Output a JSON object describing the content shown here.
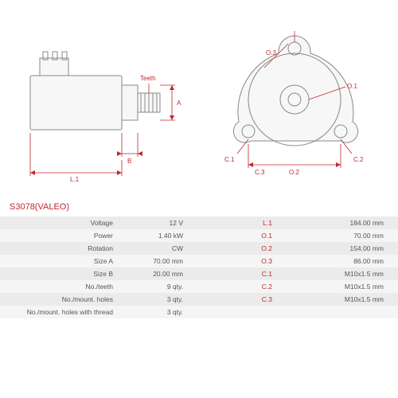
{
  "title": "S3078(VALEO)",
  "diagram_labels": {
    "teeth": "Teeth",
    "A": "A",
    "B": "B",
    "L1": "L.1",
    "O1": "O.1",
    "O2": "O.2",
    "O3": "O.3",
    "C1": "C.1",
    "C2": "C.2",
    "C3": "C.3"
  },
  "specs": [
    {
      "label": "Voltage",
      "value": "12 V",
      "label2": "L.1",
      "value2": "184.00 mm"
    },
    {
      "label": "Power",
      "value": "1.40 kW",
      "label2": "O.1",
      "value2": "70.00 mm"
    },
    {
      "label": "Rotation",
      "value": "CW",
      "label2": "O.2",
      "value2": "154.00 mm"
    },
    {
      "label": "Size A",
      "value": "70.00 mm",
      "label2": "O.3",
      "value2": "86.00 mm"
    },
    {
      "label": "Size B",
      "value": "20.00 mm",
      "label2": "C.1",
      "value2": "M10x1.5 mm"
    },
    {
      "label": "No./teeth",
      "value": "9 qty.",
      "label2": "C.2",
      "value2": "M10x1.5 mm"
    },
    {
      "label": "No./mount. holes",
      "value": "3 qty.",
      "label2": "C.3",
      "value2": "M10x1.5 mm"
    },
    {
      "label": "No./mount. holes with thread",
      "value": "3 qty.",
      "label2": "",
      "value2": ""
    }
  ],
  "colors": {
    "accent": "#c1272d",
    "row_bg": "#ebebeb",
    "row_alt": "#f5f5f5",
    "line": "#888",
    "fill": "#f7f7f7"
  }
}
